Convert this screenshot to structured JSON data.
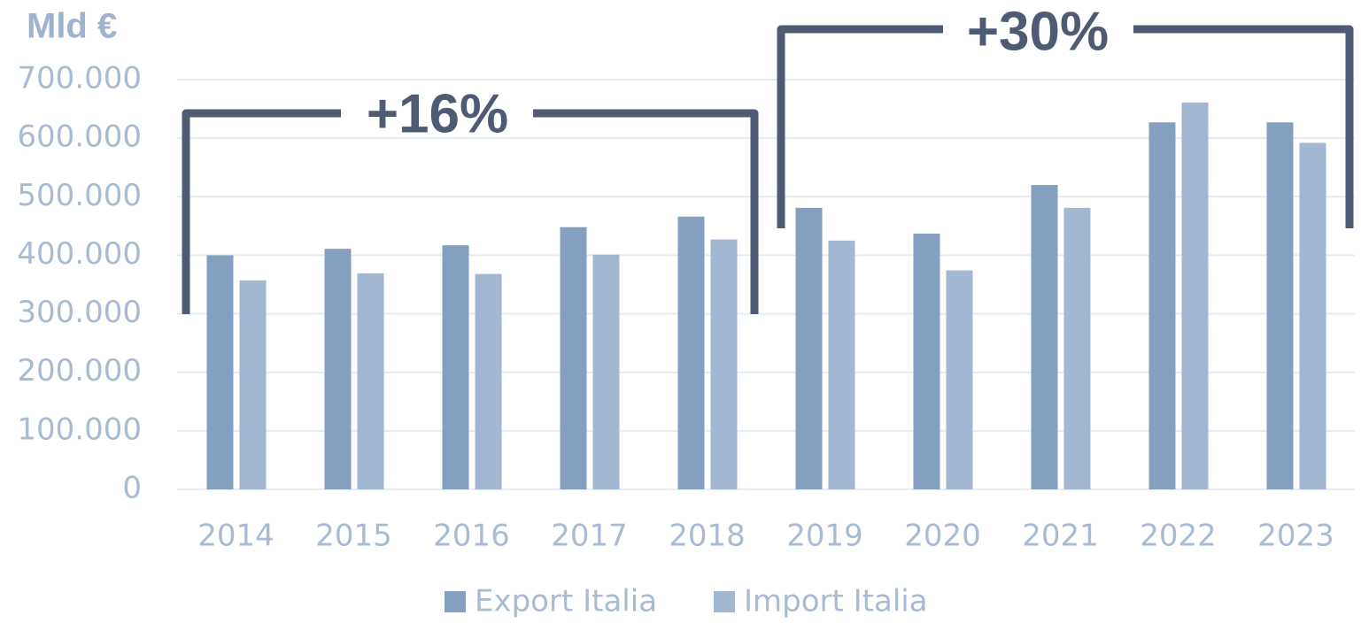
{
  "chart_data": {
    "type": "bar",
    "y_label": "Mld €",
    "categories": [
      "2014",
      "2015",
      "2016",
      "2017",
      "2018",
      "2019",
      "2020",
      "2021",
      "2022",
      "2023"
    ],
    "series": [
      {
        "name": "Export Italia",
        "color": "#849fc0",
        "values": [
          400000,
          411000,
          417000,
          448000,
          466000,
          481000,
          437000,
          520000,
          627000,
          627000
        ]
      },
      {
        "name": "Import Italia",
        "color": "#a3b7d2",
        "values": [
          357000,
          369000,
          368000,
          401000,
          427000,
          425000,
          374000,
          481000,
          661000,
          592000
        ]
      }
    ],
    "ylim": [
      0,
      700000
    ],
    "yticks": [
      0,
      {
        "value": 100000,
        "label": "100.000"
      },
      {
        "value": 200000,
        "label": "200.000"
      },
      {
        "value": 300000,
        "label": "300.000"
      },
      {
        "value": 400000,
        "label": "400.000"
      },
      {
        "value": 500000,
        "label": "500.000"
      },
      {
        "value": 600000,
        "label": "600.000"
      },
      {
        "value": 700000,
        "label": "700.000"
      }
    ],
    "grid": true,
    "legend": "bottom",
    "annotations": [
      "+16%",
      "+30%"
    ]
  }
}
